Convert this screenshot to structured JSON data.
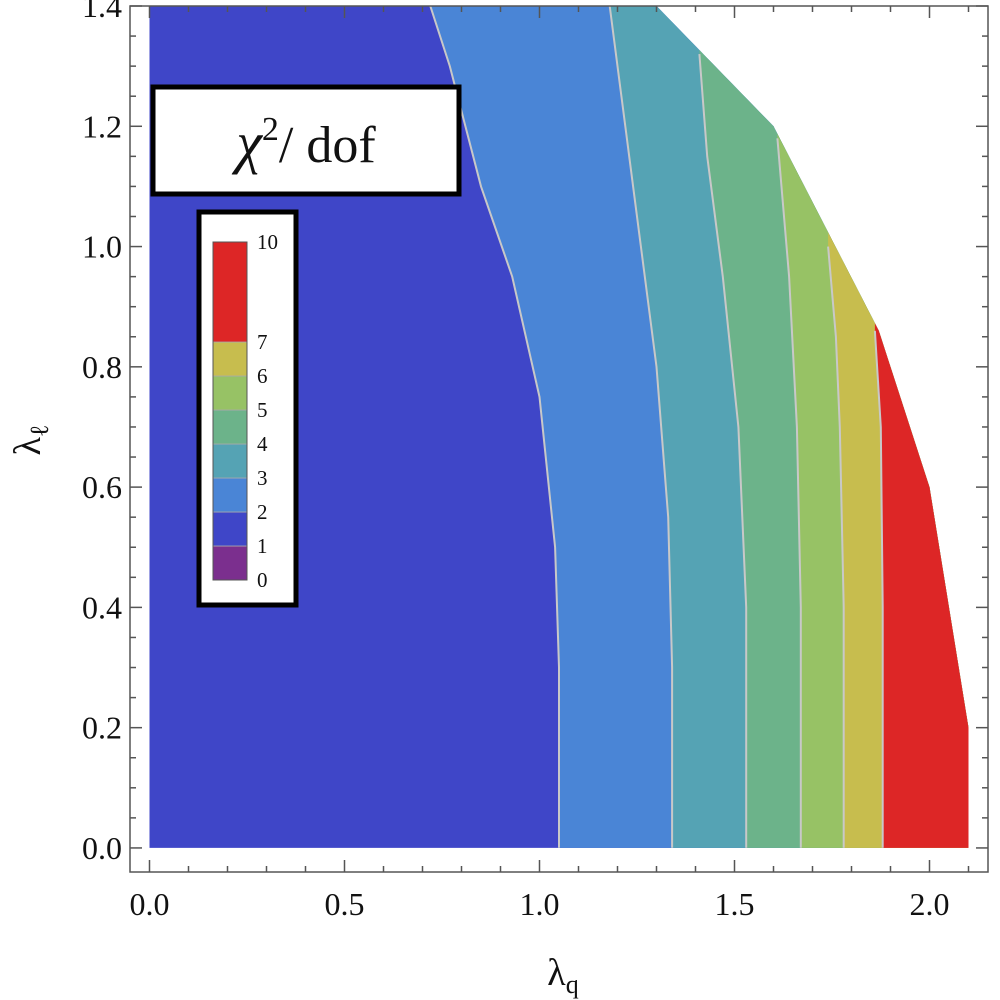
{
  "chart_data": {
    "type": "contour",
    "title": "χ²/ dof",
    "title_main": "χ",
    "title_sup": "2",
    "title_tail": "/ dof",
    "xlabel": "λq",
    "xlabel_main": "λ",
    "xlabel_sub": "q",
    "ylabel": "λℓ",
    "ylabel_main": "λ",
    "ylabel_sub": "ℓ",
    "xlim": [
      -0.05,
      2.15
    ],
    "ylim": [
      -0.04,
      1.4
    ],
    "grid": false,
    "xticks": [
      0.0,
      0.5,
      1.0,
      1.5,
      2.0
    ],
    "xtick_labels": [
      "0.0",
      "0.5",
      "1.0",
      "1.5",
      "2.0"
    ],
    "yticks": [
      0.0,
      0.2,
      0.4,
      0.6,
      0.8,
      1.0,
      1.2,
      1.4
    ],
    "ytick_labels": [
      "0.0",
      "0.2",
      "0.4",
      "0.6",
      "0.8",
      "1.0",
      "1.2",
      "1.4"
    ],
    "legend": {
      "placement": "top-left",
      "levels": [
        0,
        1,
        2,
        3,
        4,
        5,
        6,
        7,
        10
      ],
      "labels": [
        "0",
        "1",
        "2",
        "3",
        "4",
        "5",
        "6",
        "7",
        "10"
      ],
      "colors": [
        "#7b2f8e",
        "#3f46c8",
        "#4a85d6",
        "#55a3b4",
        "#6cb38a",
        "#97c265",
        "#c7bd4e",
        "#dd2626"
      ]
    },
    "domain_boundary": [
      [
        0,
        0
      ],
      [
        0,
        1.4
      ],
      [
        1.3,
        1.4
      ],
      [
        1.6,
        1.2
      ],
      [
        1.87,
        0.86
      ],
      [
        2.0,
        0.6
      ],
      [
        2.1,
        0.2
      ],
      [
        2.1,
        0
      ]
    ],
    "contours": [
      {
        "level": 2,
        "points": [
          [
            1.05,
            0
          ],
          [
            1.05,
            0.3
          ],
          [
            1.04,
            0.5
          ],
          [
            1.0,
            0.75
          ],
          [
            0.93,
            0.95
          ],
          [
            0.85,
            1.1
          ],
          [
            0.77,
            1.3
          ],
          [
            0.72,
            1.4
          ]
        ]
      },
      {
        "level": 3,
        "points": [
          [
            1.34,
            0
          ],
          [
            1.34,
            0.3
          ],
          [
            1.33,
            0.55
          ],
          [
            1.3,
            0.8
          ],
          [
            1.25,
            1.05
          ],
          [
            1.21,
            1.25
          ],
          [
            1.18,
            1.4
          ]
        ]
      },
      {
        "level": 4,
        "points": [
          [
            1.53,
            0
          ],
          [
            1.53,
            0.4
          ],
          [
            1.51,
            0.7
          ],
          [
            1.47,
            0.95
          ],
          [
            1.43,
            1.15
          ],
          [
            1.41,
            1.32
          ]
        ]
      },
      {
        "level": 5,
        "points": [
          [
            1.67,
            0
          ],
          [
            1.67,
            0.4
          ],
          [
            1.66,
            0.7
          ],
          [
            1.64,
            0.95
          ],
          [
            1.61,
            1.18
          ]
        ]
      },
      {
        "level": 6,
        "points": [
          [
            1.78,
            0
          ],
          [
            1.78,
            0.4
          ],
          [
            1.77,
            0.7
          ],
          [
            1.76,
            0.85
          ],
          [
            1.74,
            1.0
          ]
        ]
      },
      {
        "level": 7,
        "points": [
          [
            1.88,
            0
          ],
          [
            1.88,
            0.4
          ],
          [
            1.875,
            0.7
          ],
          [
            1.86,
            0.86
          ]
        ]
      }
    ]
  }
}
